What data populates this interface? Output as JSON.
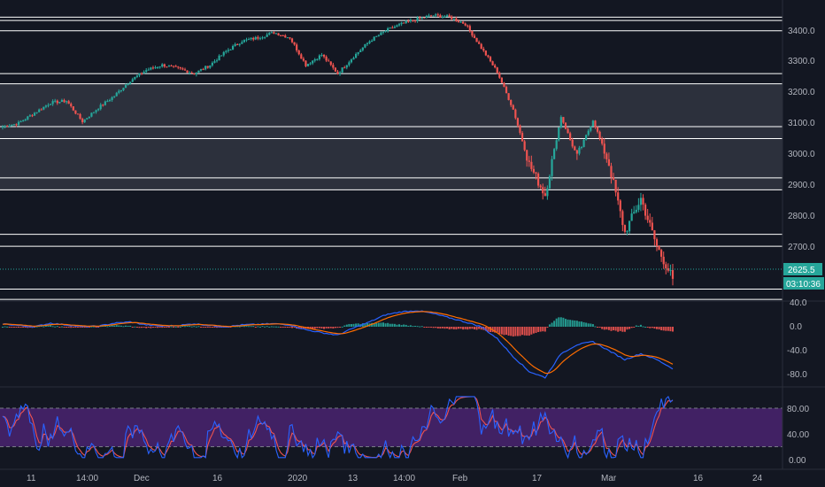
{
  "price_pane": {
    "current_price": "2625.5",
    "countdown": "03:10:36",
    "y_ticks": [
      "3400.0",
      "3300.0",
      "3200.0",
      "3100.0",
      "3000.0",
      "2900.0",
      "2800.0",
      "2700.0"
    ],
    "y_values": [
      3400,
      3300,
      3200,
      3100,
      3000,
      2900,
      2800,
      2700
    ],
    "horizontal_levels": [
      3390,
      3380,
      3350,
      3225,
      3195,
      3070,
      3035,
      2920,
      2885,
      2755,
      2720,
      2595,
      2565
    ],
    "shaded_zone": [
      2885,
      3195
    ]
  },
  "macd_pane": {
    "y_ticks": [
      "40.0",
      "0.0",
      "-40.0",
      "-80.0"
    ],
    "y_values": [
      40,
      0,
      -40,
      -80
    ]
  },
  "stoch_pane": {
    "y_ticks": [
      "80.00",
      "40.00",
      "0.00"
    ],
    "y_values": [
      80,
      40,
      0
    ]
  },
  "x_axis": {
    "labels": [
      "11",
      "14:00",
      "Dec",
      "16",
      "2020",
      "13",
      "14:00",
      "Feb",
      "17",
      "Mar",
      "16",
      "24"
    ]
  },
  "colors": {
    "background": "#131722",
    "up_candle": "#26a69a",
    "down_candle": "#ef5350",
    "level_line": "#ffffff",
    "zone_fill": "#363a45",
    "macd_line": "#2962ff",
    "signal_line": "#ff6d00",
    "hist_up": "#26a69a",
    "hist_down": "#ef5350",
    "stoch_k": "#2962ff",
    "stoch_d": "#ef5350",
    "stoch_band": "#4a2370",
    "price_tag": "#26a69a"
  },
  "chart_data": {
    "type": "candlestick",
    "x": [
      "11",
      "14:00",
      "Dec",
      "16",
      "2020",
      "13",
      "14:00",
      "Feb",
      "17",
      "Mar",
      "16",
      "24"
    ],
    "series": [
      {
        "anchor_closes": [
          3070,
          3080,
          3110,
          3140,
          3145,
          3085,
          3125,
          3160,
          3205,
          3235,
          3250,
          3240,
          3225,
          3250,
          3290,
          3320,
          3330,
          3345,
          3330,
          3250,
          3280,
          3225,
          3275,
          3320,
          3350,
          3370,
          3385,
          3395,
          3390,
          3370,
          3300,
          3230,
          3120,
          2960,
          2870,
          3100,
          2980,
          3090,
          2960,
          2760,
          2860,
          2720,
          2625
        ],
        "macd": [
          5,
          2,
          0,
          6,
          3,
          0,
          1,
          6,
          8,
          3,
          1,
          2,
          5,
          2,
          0,
          3,
          4,
          5,
          3,
          -5,
          -10,
          -14,
          -2,
          8,
          20,
          25,
          27,
          22,
          15,
          8,
          0,
          -20,
          -50,
          -75,
          -85,
          -45,
          -30,
          -25,
          -40,
          -55,
          -45,
          -55,
          -70
        ]
      }
    ],
    "ylim": [
      2560,
      3440
    ]
  }
}
